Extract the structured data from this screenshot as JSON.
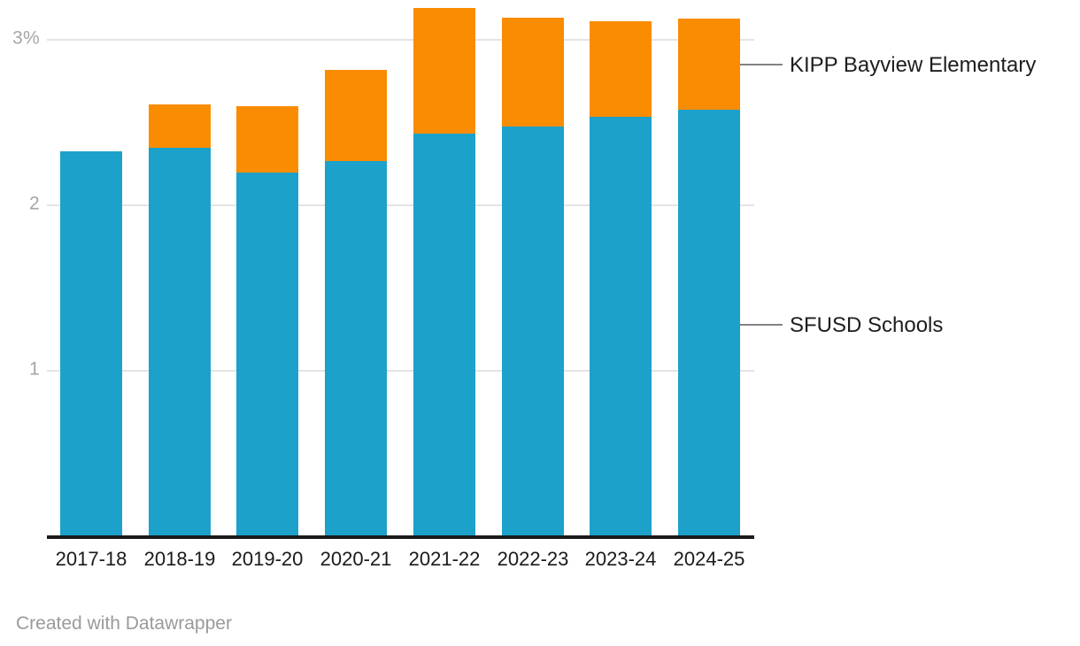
{
  "chart_data": {
    "type": "bar",
    "stacked": true,
    "orientation": "vertical",
    "categories": [
      "2017-18",
      "2018-19",
      "2019-20",
      "2020-21",
      "2021-22",
      "2022-23",
      "2023-24",
      "2024-25"
    ],
    "series": [
      {
        "name": "SFUSD Schools",
        "color": "#1CA1CB",
        "values": [
          2.32,
          2.34,
          2.19,
          2.26,
          2.43,
          2.47,
          2.53,
          2.57
        ]
      },
      {
        "name": "KIPP Bayview Elementary",
        "color": "#FA8C02",
        "values": [
          0,
          0.26,
          0.4,
          0.55,
          0.76,
          0.66,
          0.58,
          0.55
        ]
      }
    ],
    "title": "",
    "xlabel": "",
    "ylabel": "",
    "ylim": [
      0,
      3.25
    ],
    "grid": true,
    "y_ticks": [
      {
        "value": 1,
        "label": "1"
      },
      {
        "value": 2,
        "label": "2"
      },
      {
        "value": 3,
        "label": "3%"
      }
    ],
    "legend_position": "right-direct-labels"
  },
  "legend": {
    "kipp_label": "KIPP Bayview Elementary",
    "sfusd_label": "SFUSD Schools"
  },
  "footer": {
    "attribution": "Created with Datawrapper"
  },
  "colors": {
    "sfusd_blue": "#1CA1CB",
    "kipp_orange": "#FA8C02",
    "axis_line": "#1a1a1a",
    "gridline": "#e4e4e4",
    "y_tick_text": "#a6a6a6",
    "x_tick_text": "#1a1a1a",
    "annotation_text": "#1d1d1d",
    "connector_line": "#828282",
    "footer_text": "#9a9a9a",
    "background": "#ffffff"
  }
}
